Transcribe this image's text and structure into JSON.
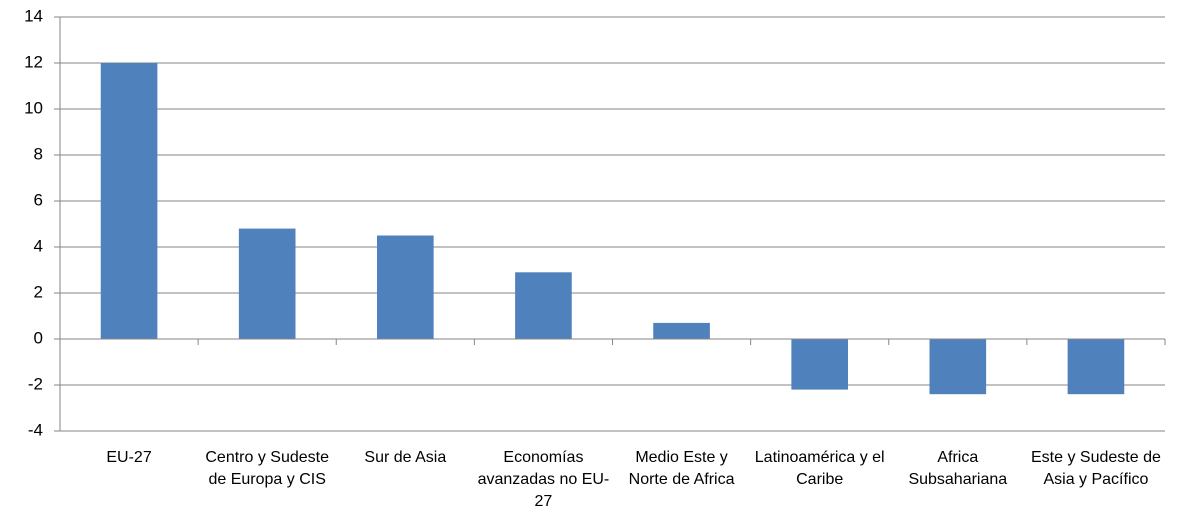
{
  "chart_data": {
    "type": "bar",
    "categories": [
      "EU-27",
      "Centro y Sudeste de Europa y CIS",
      "Sur de Asia",
      "Economías avanzadas no EU-27",
      "Medio Este y Norte de Africa",
      "Latinoamérica y el Caribe",
      "Africa Subsahariana",
      "Este y Sudeste de Asia y Pacífico"
    ],
    "values": [
      12,
      4.8,
      4.5,
      2.9,
      0.7,
      -2.2,
      -2.4,
      -2.4
    ],
    "color": "#4f81bd",
    "ylim": [
      -4,
      14
    ],
    "yticks": [
      -4,
      -2,
      0,
      2,
      4,
      6,
      8,
      10,
      12,
      14
    ],
    "grid": true
  }
}
